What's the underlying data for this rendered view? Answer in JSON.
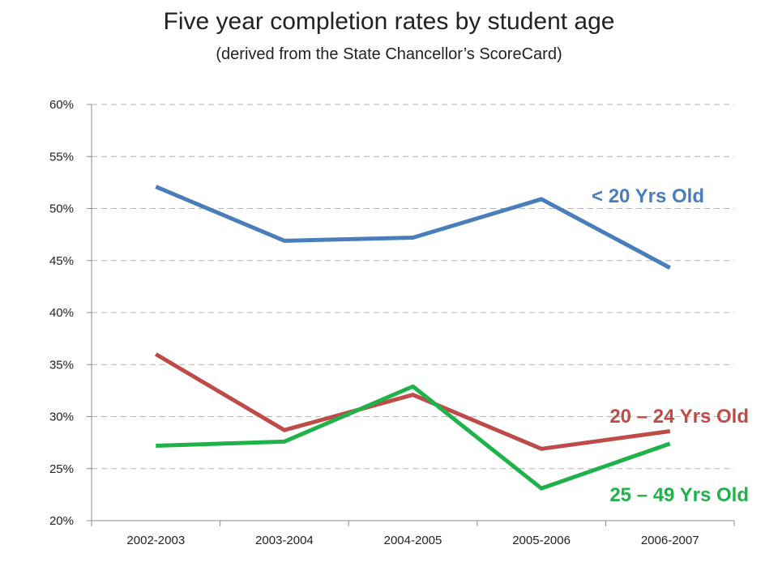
{
  "chart_data": {
    "type": "line",
    "title": "Five year completion rates by student age",
    "subtitle": "(derived from the State Chancellor’s ScoreCard)",
    "xlabel": "",
    "ylabel": "",
    "categories": [
      "2002-2003",
      "2003-2004",
      "2004-2005",
      "2005-2006",
      "2006-2007"
    ],
    "ylim": [
      20,
      60
    ],
    "yticks": [
      20,
      25,
      30,
      35,
      40,
      45,
      50,
      55,
      60
    ],
    "ytick_labels": [
      "20%",
      "25%",
      "30%",
      "35%",
      "40%",
      "45%",
      "50%",
      "55%",
      "60%"
    ],
    "grid": "horizontal dashed",
    "legend": "inline labels at right end of each line",
    "series": [
      {
        "name": "< 20 Yrs Old",
        "color": "#4a7ebb",
        "values": [
          52.1,
          46.9,
          47.2,
          50.9,
          44.3
        ]
      },
      {
        "name": "20 – 24 Yrs Old",
        "color": "#be4b48",
        "values": [
          36.0,
          28.7,
          32.1,
          26.9,
          28.6
        ]
      },
      {
        "name": "25 – 49 Yrs Old",
        "color": "#1fb24a",
        "values": [
          27.2,
          27.6,
          32.9,
          23.1,
          27.4
        ]
      }
    ]
  }
}
